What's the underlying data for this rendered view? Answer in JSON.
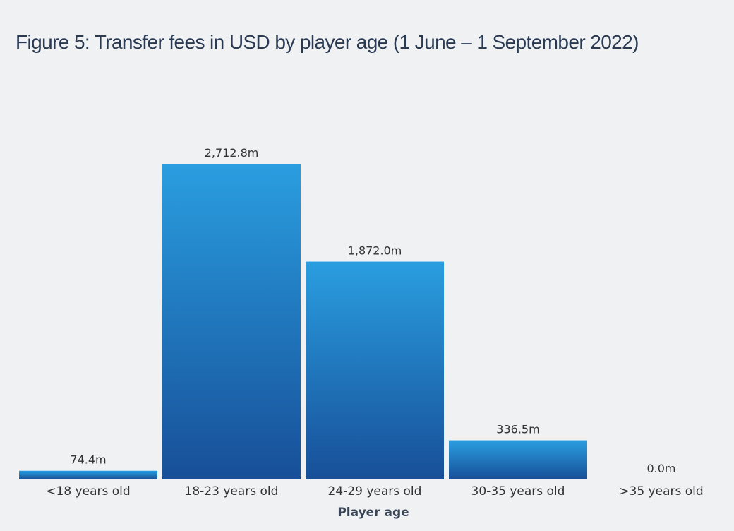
{
  "chart_data": {
    "type": "bar",
    "title": "Figure 5: Transfer fees in USD by player age (1 June – 1 September 2022)",
    "xlabel": "Player age",
    "ylabel": "",
    "categories": [
      "<18 years old",
      "18-23 years old",
      "24-29 years old",
      "30-35 years old",
      ">35 years old"
    ],
    "values": [
      74.4,
      2712.8,
      1872.0,
      336.5,
      0.0
    ],
    "value_labels": [
      "74.4m",
      "2,712.8m",
      "1,872.0m",
      "336.5m",
      "0.0m"
    ],
    "ylim": [
      0,
      2712.8
    ],
    "grid": false,
    "legend": "none",
    "colors": {
      "bar_top": "#2a9ee0",
      "bar_bottom": "#174f98",
      "text": "#333333",
      "title": "#2a3a52",
      "background": "#f0f1f3"
    }
  }
}
